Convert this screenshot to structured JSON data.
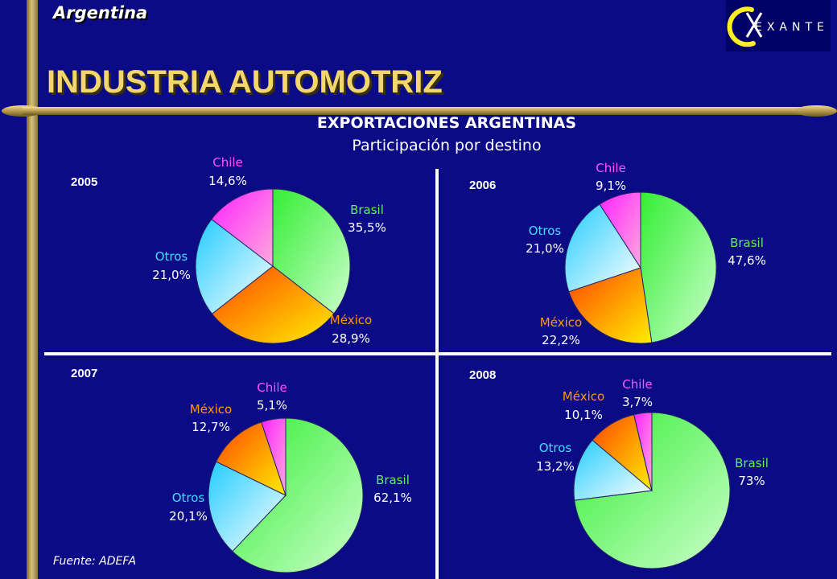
{
  "header": {
    "region": "Argentina",
    "title": "INDUSTRIA AUTOMOTRIZ",
    "logo_text": "EXANTE"
  },
  "chart_heading": "EXPORTACIONES ARGENTINAS",
  "chart_subheading": "Participación por destino",
  "source": "Fuente: ADEFA",
  "colors": {
    "background": "#0b0b86",
    "gold": "#d8c27a",
    "title": "#f3d66e",
    "Brasil": "#66ee55",
    "México": "#ff8800",
    "Otros": "#44ddff",
    "Chile": "#ff44ee"
  },
  "chart_data": [
    {
      "type": "pie",
      "year": "2005",
      "slices": [
        {
          "name": "Brasil",
          "value": 35.5,
          "label": "35,5%"
        },
        {
          "name": "México",
          "value": 28.9,
          "label": "28,9%"
        },
        {
          "name": "Otros",
          "value": 21.0,
          "label": "21,0%"
        },
        {
          "name": "Chile",
          "value": 14.6,
          "label": "14,6%"
        }
      ]
    },
    {
      "type": "pie",
      "year": "2006",
      "slices": [
        {
          "name": "Brasil",
          "value": 47.6,
          "label": "47,6%"
        },
        {
          "name": "México",
          "value": 22.2,
          "label": "22,2%"
        },
        {
          "name": "Otros",
          "value": 21.0,
          "label": "21,0%"
        },
        {
          "name": "Chile",
          "value": 9.1,
          "label": "9,1%"
        }
      ]
    },
    {
      "type": "pie",
      "year": "2007",
      "slices": [
        {
          "name": "Brasil",
          "value": 62.1,
          "label": "62,1%"
        },
        {
          "name": "Otros",
          "value": 20.1,
          "label": "20,1%"
        },
        {
          "name": "México",
          "value": 12.7,
          "label": "12,7%"
        },
        {
          "name": "Chile",
          "value": 5.1,
          "label": "5,1%"
        }
      ]
    },
    {
      "type": "pie",
      "year": "2008",
      "slices": [
        {
          "name": "Brasil",
          "value": 73,
          "label": "73%"
        },
        {
          "name": "Otros",
          "value": 13.2,
          "label": "13,2%"
        },
        {
          "name": "México",
          "value": 10.1,
          "label": "10,1%"
        },
        {
          "name": "Chile",
          "value": 3.7,
          "label": "3,7%"
        }
      ]
    }
  ]
}
